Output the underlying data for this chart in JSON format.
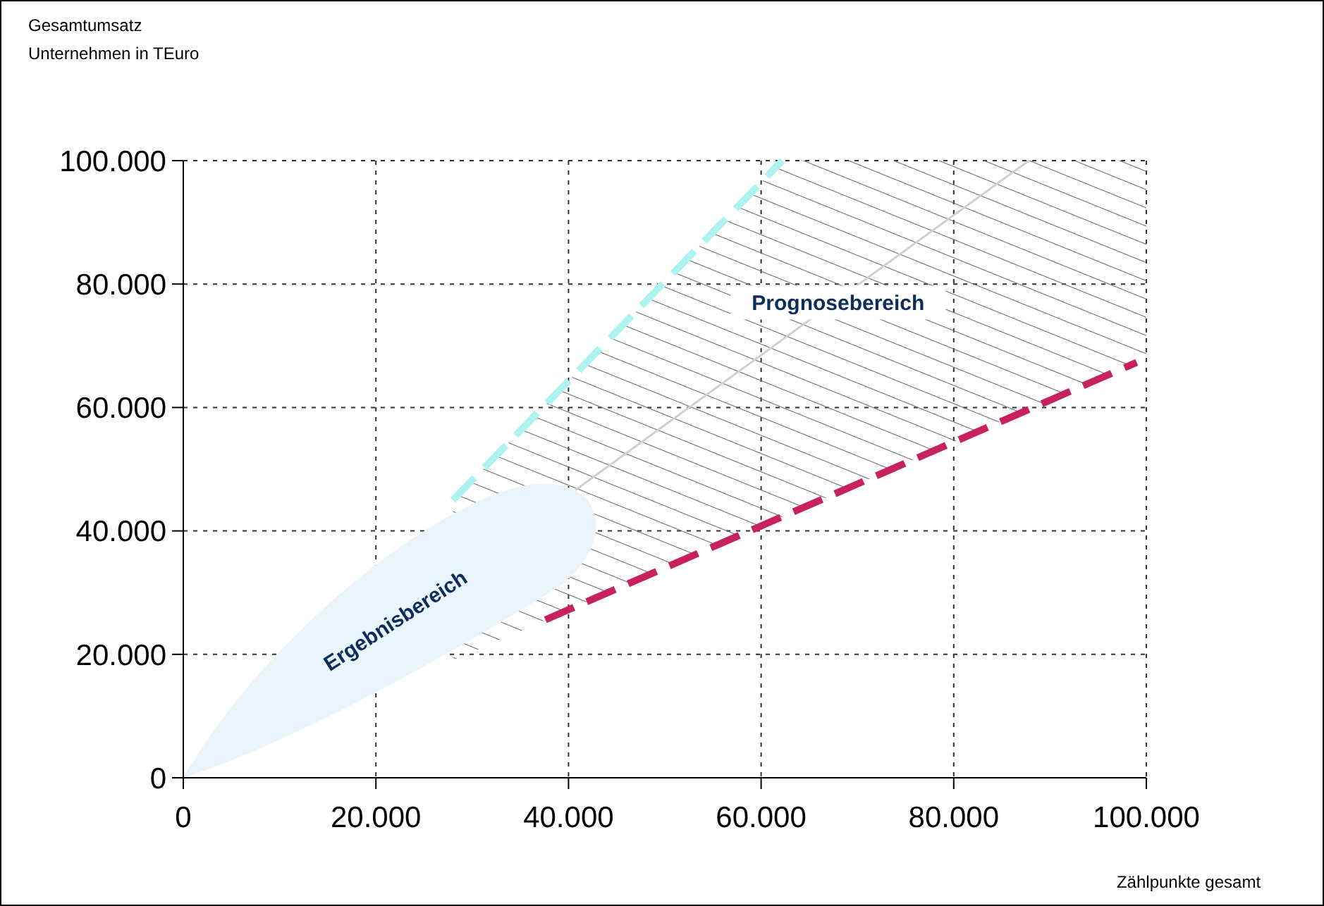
{
  "chart_data": {
    "type": "line",
    "xlabel": "Zählpunkte gesamt",
    "ylabel": "Gesamtumsatz\nUnternehmen in TEuro",
    "xlim": [
      0,
      100000
    ],
    "ylim": [
      0,
      100000
    ],
    "xticks": [
      {
        "value": 0,
        "label": "0"
      },
      {
        "value": 20000,
        "label": "20.000"
      },
      {
        "value": 40000,
        "label": "40.000"
      },
      {
        "value": 60000,
        "label": "60.000"
      },
      {
        "value": 80000,
        "label": "80.000"
      },
      {
        "value": 100000,
        "label": "100.000"
      }
    ],
    "yticks": [
      {
        "value": 0,
        "label": "0"
      },
      {
        "value": 20000,
        "label": "20.000"
      },
      {
        "value": 40000,
        "label": "40.000"
      },
      {
        "value": 60000,
        "label": "60.000"
      },
      {
        "value": 80000,
        "label": "80.000"
      },
      {
        "value": 100000,
        "label": "100.000"
      }
    ],
    "grid": true,
    "marker": "none",
    "series": [
      {
        "color": "#aef3ef",
        "line_style": "dashed",
        "x": [
          28000,
          40000,
          62200,
          100000
        ],
        "values": [
          45000,
          64300,
          100000,
          null
        ],
        "lower": [
          19000,
          27200,
          42300,
          68000
        ],
        "upper": [
          45000,
          64300,
          100000,
          100000
        ]
      },
      {
        "color": "#c8215f",
        "line_style": "dashed",
        "x": [
          37600,
          99000
        ],
        "values": [
          25600,
          67300
        ]
      },
      {
        "color": "#d0d0d0",
        "line_style": "solid",
        "x": [
          40700,
          87800
        ],
        "values": [
          46600,
          100000
        ]
      }
    ],
    "annotations": [
      {
        "text": "Prognosebereich",
        "x": 68000,
        "y": 77000
      },
      "Ergebnisbereich"
    ]
  }
}
